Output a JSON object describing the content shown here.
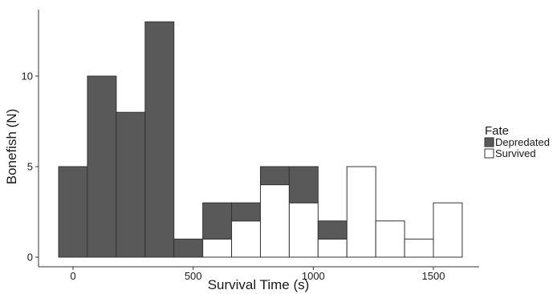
{
  "chart_data": {
    "type": "bar",
    "subtype": "stacked-histogram",
    "xlabel": "Survival Time (s)",
    "ylabel": "Bonefish (N)",
    "xlim": [
      -100,
      1650
    ],
    "ylim": [
      0,
      13.3
    ],
    "x_ticks": [
      0,
      500,
      1000,
      1500
    ],
    "y_ticks": [
      0,
      5,
      10
    ],
    "bin_width": 120,
    "bins": [
      {
        "start": -60,
        "end": 60,
        "Depredated": 5,
        "Survived": 0
      },
      {
        "start": 60,
        "end": 180,
        "Depredated": 10,
        "Survived": 0
      },
      {
        "start": 180,
        "end": 300,
        "Depredated": 8,
        "Survived": 0
      },
      {
        "start": 300,
        "end": 420,
        "Depredated": 13,
        "Survived": 0
      },
      {
        "start": 420,
        "end": 540,
        "Depredated": 1,
        "Survived": 0
      },
      {
        "start": 540,
        "end": 660,
        "Depredated": 2,
        "Survived": 1
      },
      {
        "start": 660,
        "end": 780,
        "Depredated": 1,
        "Survived": 2
      },
      {
        "start": 780,
        "end": 900,
        "Depredated": 1,
        "Survived": 4
      },
      {
        "start": 900,
        "end": 1020,
        "Depredated": 2,
        "Survived": 3
      },
      {
        "start": 1020,
        "end": 1140,
        "Depredated": 1,
        "Survived": 1
      },
      {
        "start": 1140,
        "end": 1260,
        "Depredated": 0,
        "Survived": 5
      },
      {
        "start": 1260,
        "end": 1380,
        "Depredated": 0,
        "Survived": 2
      },
      {
        "start": 1380,
        "end": 1500,
        "Depredated": 0,
        "Survived": 1
      },
      {
        "start": 1500,
        "end": 1620,
        "Depredated": 0,
        "Survived": 3
      }
    ],
    "legend": {
      "title": "Fate",
      "placement": "right",
      "entries": [
        {
          "name": "Depredated",
          "color": "#595959"
        },
        {
          "name": "Survived",
          "color": "#ffffff"
        }
      ]
    },
    "grid": false
  }
}
